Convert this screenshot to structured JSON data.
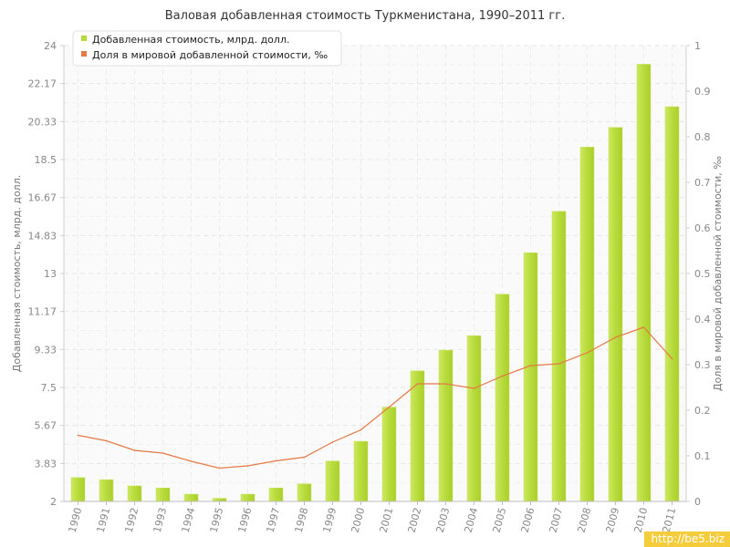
{
  "chart_data": {
    "type": "bar",
    "title": "Валовая добавленная стоимость Туркменистана, 1990–2011 гг.",
    "categories": [
      "1990",
      "1991",
      "1992",
      "1993",
      "1994",
      "1995",
      "1996",
      "1997",
      "1998",
      "1999",
      "2000",
      "2001",
      "2002",
      "2003",
      "2004",
      "2005",
      "2006",
      "2007",
      "2008",
      "2009",
      "2010",
      "2011"
    ],
    "series": [
      {
        "name": "Добавленная стоимость, млрд. долл.",
        "type": "bar",
        "axis": "left",
        "color": "#b8db3c",
        "values": [
          3.15,
          3.05,
          2.75,
          2.65,
          2.35,
          2.15,
          2.35,
          2.65,
          2.85,
          3.95,
          4.9,
          6.55,
          8.3,
          9.3,
          10.0,
          12.0,
          14.0,
          16.0,
          19.1,
          20.05,
          23.1,
          21.05
        ]
      },
      {
        "name": "Доля в мировой добавленной стоимости, ‰",
        "type": "line",
        "axis": "right",
        "color": "#e57844",
        "values": [
          0.145,
          0.133,
          0.112,
          0.106,
          0.088,
          0.073,
          0.078,
          0.089,
          0.097,
          0.13,
          0.157,
          0.207,
          0.258,
          0.258,
          0.248,
          0.275,
          0.298,
          0.302,
          0.326,
          0.36,
          0.382,
          0.313
        ]
      }
    ],
    "ylabel": "Добавленная стоимость, млрд. долл.",
    "y2label": "Доля в мировой добавленной стоимости, ‰",
    "ylim": [
      2,
      24
    ],
    "yticks": [
      "2",
      "3.83",
      "5.67",
      "7.5",
      "9.33",
      "11.17",
      "13",
      "14.83",
      "16.67",
      "18.5",
      "20.33",
      "22.17",
      "24"
    ],
    "y2lim": [
      0,
      1
    ],
    "y2ticks": [
      "0",
      "0.1",
      "0.2",
      "0.3",
      "0.4",
      "0.5",
      "0.6",
      "0.7",
      "0.8",
      "0.9",
      "1"
    ],
    "grid": true,
    "legend_position": "top-left"
  },
  "watermark": "http://be5.biz"
}
